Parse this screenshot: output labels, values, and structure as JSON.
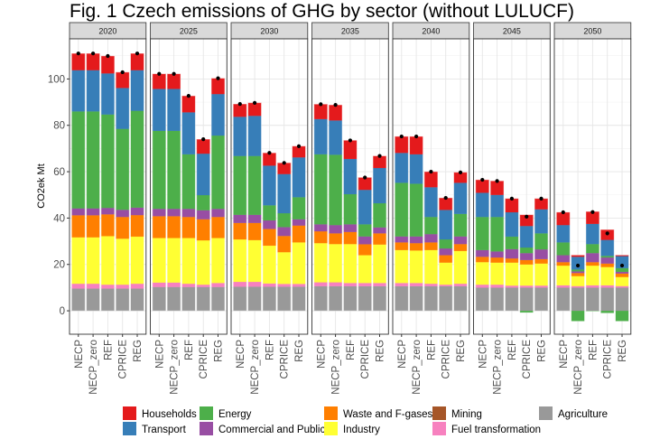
{
  "chart_data": {
    "type": "bar",
    "stacked": true,
    "title": "Fig. 1 Czech emissions of GHG by sector (without LULUCF)",
    "xlabel": "",
    "ylabel": "CO2ek Mt",
    "ylim": [
      -10.1,
      117.3
    ],
    "yticks": [
      0,
      20,
      40,
      60,
      80,
      100
    ],
    "yticks_labels": [
      "0",
      "20",
      "40",
      "60",
      "80",
      "100"
    ],
    "grid": true,
    "legend_position": "bottom",
    "facets": [
      "2020",
      "2025",
      "2030",
      "2035",
      "2040",
      "2045",
      "2050"
    ],
    "categories": [
      "NECP",
      "NECP_zero",
      "REF",
      "CPRICE",
      "REG"
    ],
    "stack_order": [
      "Agriculture",
      "Fuel transformation",
      "Industry",
      "Waste and F-gases",
      "Commercial and Public",
      "Energy",
      "Transport",
      "Households",
      "Mining"
    ],
    "legend": [
      {
        "name": "Households",
        "color": "#e41a1c"
      },
      {
        "name": "Transport",
        "color": "#377eb8"
      },
      {
        "name": "Energy",
        "color": "#4daf4a"
      },
      {
        "name": "Commercial and Public",
        "color": "#984ea3"
      },
      {
        "name": "Waste and F-gases",
        "color": "#ff7f00"
      },
      {
        "name": "Industry",
        "color": "#ffff33"
      },
      {
        "name": "Mining",
        "color": "#a65628"
      },
      {
        "name": "Fuel transformation",
        "color": "#f781bf"
      },
      {
        "name": "Agriculture",
        "color": "#999999"
      }
    ],
    "total_marker": "point",
    "series": [
      {
        "name": "Agriculture",
        "values": {
          "2020": [
            9.6,
            9.6,
            9.6,
            9.6,
            9.6
          ],
          "2025": [
            10.3,
            10.3,
            10.3,
            10.3,
            10.3
          ],
          "2030": [
            10.4,
            10.4,
            10.4,
            10.4,
            10.4
          ],
          "2035": [
            10.6,
            10.6,
            10.6,
            10.6,
            10.6
          ],
          "2040": [
            10.6,
            10.6,
            10.6,
            10.6,
            10.6
          ],
          "2045": [
            10.0,
            10.0,
            10.0,
            10.0,
            10.0
          ],
          "2050": [
            10.0,
            10.0,
            10.0,
            10.0,
            10.0
          ]
        }
      },
      {
        "name": "Fuel transformation",
        "values": {
          "2020": [
            2.1,
            2.1,
            1.7,
            1.7,
            2.1
          ],
          "2025": [
            1.9,
            1.9,
            1.4,
            1.0,
            1.7
          ],
          "2030": [
            2.1,
            2.1,
            1.4,
            1.2,
            1.2
          ],
          "2035": [
            1.7,
            1.7,
            1.4,
            1.4,
            1.4
          ],
          "2040": [
            1.4,
            1.4,
            1.1,
            0.7,
            1.1
          ],
          "2045": [
            1.3,
            1.3,
            0.9,
            0.9,
            0.9
          ],
          "2050": [
            1.0,
            0.7,
            1.0,
            1.0,
            0.7
          ]
        }
      },
      {
        "name": "Industry",
        "values": {
          "2020": [
            20.0,
            20.0,
            20.9,
            19.8,
            20.3
          ],
          "2025": [
            19.2,
            19.2,
            19.7,
            19.1,
            19.4
          ],
          "2030": [
            18.3,
            18.0,
            16.3,
            13.7,
            17.9
          ],
          "2035": [
            16.9,
            16.5,
            16.8,
            12.0,
            16.6
          ],
          "2040": [
            14.2,
            14.0,
            14.5,
            9.5,
            14.1
          ],
          "2045": [
            9.7,
            9.5,
            9.9,
            9.1,
            9.5
          ],
          "2050": [
            8.5,
            4.3,
            8.5,
            7.9,
            3.9
          ]
        }
      },
      {
        "name": "Waste and F-gases",
        "values": {
          "2020": [
            9.5,
            9.5,
            9.4,
            9.4,
            9.3
          ],
          "2025": [
            9.4,
            9.4,
            9.1,
            9.1,
            9.1
          ],
          "2030": [
            7.1,
            7.4,
            7.2,
            7.0,
            7.3
          ],
          "2035": [
            5.1,
            4.6,
            5.2,
            4.7,
            4.8
          ],
          "2040": [
            3.3,
            3.2,
            3.3,
            3.2,
            3.0
          ],
          "2045": [
            2.3,
            2.2,
            1.8,
            1.9,
            1.9
          ],
          "2050": [
            1.5,
            1.3,
            1.5,
            1.5,
            1.5
          ]
        }
      },
      {
        "name": "Commercial and Public",
        "values": {
          "2020": [
            3.0,
            3.0,
            2.8,
            3.1,
            3.2
          ],
          "2025": [
            3.2,
            3.2,
            3.5,
            3.9,
            3.5
          ],
          "2030": [
            3.5,
            3.5,
            3.7,
            3.8,
            2.7
          ],
          "2035": [
            3.0,
            3.6,
            3.3,
            3.4,
            2.6
          ],
          "2040": [
            2.6,
            2.9,
            3.6,
            2.9,
            3.3
          ],
          "2045": [
            2.9,
            2.6,
            4.0,
            3.0,
            4.2
          ],
          "2050": [
            3.0,
            0.7,
            3.9,
            2.6,
            0.7
          ]
        }
      },
      {
        "name": "Energy",
        "values": {
          "2020": [
            41.8,
            41.8,
            40.3,
            34.9,
            41.8
          ],
          "2025": [
            33.6,
            33.6,
            23.5,
            6.5,
            31.6
          ],
          "2030": [
            25.4,
            25.4,
            6.5,
            6.0,
            9.5
          ],
          "2035": [
            30.2,
            30.3,
            13.0,
            5.2,
            10.4
          ],
          "2040": [
            23.1,
            22.7,
            7.4,
            3.9,
            9.7
          ],
          "2045": [
            14.3,
            14.9,
            5.4,
            2.4,
            6.9
          ],
          "2050": [
            5.5,
            0.8,
            3.9,
            0.7,
            1.6
          ]
        },
        "negative_values": {
          "2020": [
            0,
            0,
            0,
            0,
            0
          ],
          "2025": [
            0,
            0,
            0,
            0,
            0
          ],
          "2030": [
            0,
            0,
            0,
            0,
            0
          ],
          "2035": [
            0,
            0,
            0,
            0,
            0
          ],
          "2040": [
            0,
            0,
            0,
            0,
            0
          ],
          "2045": [
            0,
            0,
            0,
            -0.8,
            0
          ],
          "2050": [
            0,
            -4.5,
            -0.2,
            -1.0,
            -4.5
          ]
        }
      },
      {
        "name": "Transport",
        "values": {
          "2020": [
            17.8,
            17.8,
            17.7,
            17.6,
            17.5
          ],
          "2025": [
            18.1,
            18.1,
            18.1,
            17.9,
            17.9
          ],
          "2030": [
            16.9,
            17.3,
            17.1,
            16.9,
            17.2
          ],
          "2035": [
            15.2,
            14.8,
            15.2,
            14.9,
            15.2
          ],
          "2040": [
            12.9,
            12.7,
            12.8,
            12.7,
            13.4
          ],
          "2045": [
            10.4,
            9.5,
            10.5,
            9.3,
            10.4
          ],
          "2050": [
            7.5,
            5.5,
            8.7,
            6.9,
            5.2
          ]
        }
      },
      {
        "name": "Households",
        "values": {
          "2020": [
            7.2,
            7.2,
            7.5,
            6.8,
            7.2
          ],
          "2025": [
            6.5,
            6.5,
            7.1,
            6.2,
            6.8
          ],
          "2030": [
            5.5,
            5.6,
            5.5,
            4.8,
            4.8
          ],
          "2035": [
            6.4,
            6.7,
            8.0,
            5.3,
            5.2
          ],
          "2040": [
            7.1,
            7.7,
            6.7,
            5.2,
            4.5
          ],
          "2045": [
            5.6,
            6.0,
            5.9,
            4.8,
            4.6
          ],
          "2050": [
            5.5,
            0.7,
            5.3,
            4.4,
            0.4
          ]
        }
      },
      {
        "name": "Mining",
        "values": {
          "2020": [
            0,
            0,
            0,
            0,
            0
          ],
          "2025": [
            0,
            0,
            0,
            0,
            0
          ],
          "2030": [
            0,
            0,
            0,
            0,
            0
          ],
          "2035": [
            0,
            0,
            0,
            0,
            0
          ],
          "2040": [
            0,
            0,
            0,
            0,
            0
          ],
          "2045": [
            0,
            0,
            0,
            0,
            0
          ],
          "2050": [
            0,
            0,
            0,
            0,
            0
          ]
        }
      }
    ],
    "totals": {
      "2020": [
        111.0,
        111.0,
        109.9,
        102.9,
        111.0
      ],
      "2025": [
        102.2,
        102.2,
        92.7,
        74.0,
        100.3
      ],
      "2030": [
        89.2,
        89.7,
        68.1,
        63.8,
        71.0
      ],
      "2035": [
        89.1,
        88.8,
        73.5,
        57.5,
        66.8
      ],
      "2040": [
        75.2,
        75.2,
        60.0,
        48.7,
        59.7
      ],
      "2045": [
        56.5,
        56.0,
        48.4,
        40.6,
        48.4
      ],
      "2050": [
        42.5,
        19.5,
        42.6,
        33.4,
        19.5
      ]
    }
  }
}
